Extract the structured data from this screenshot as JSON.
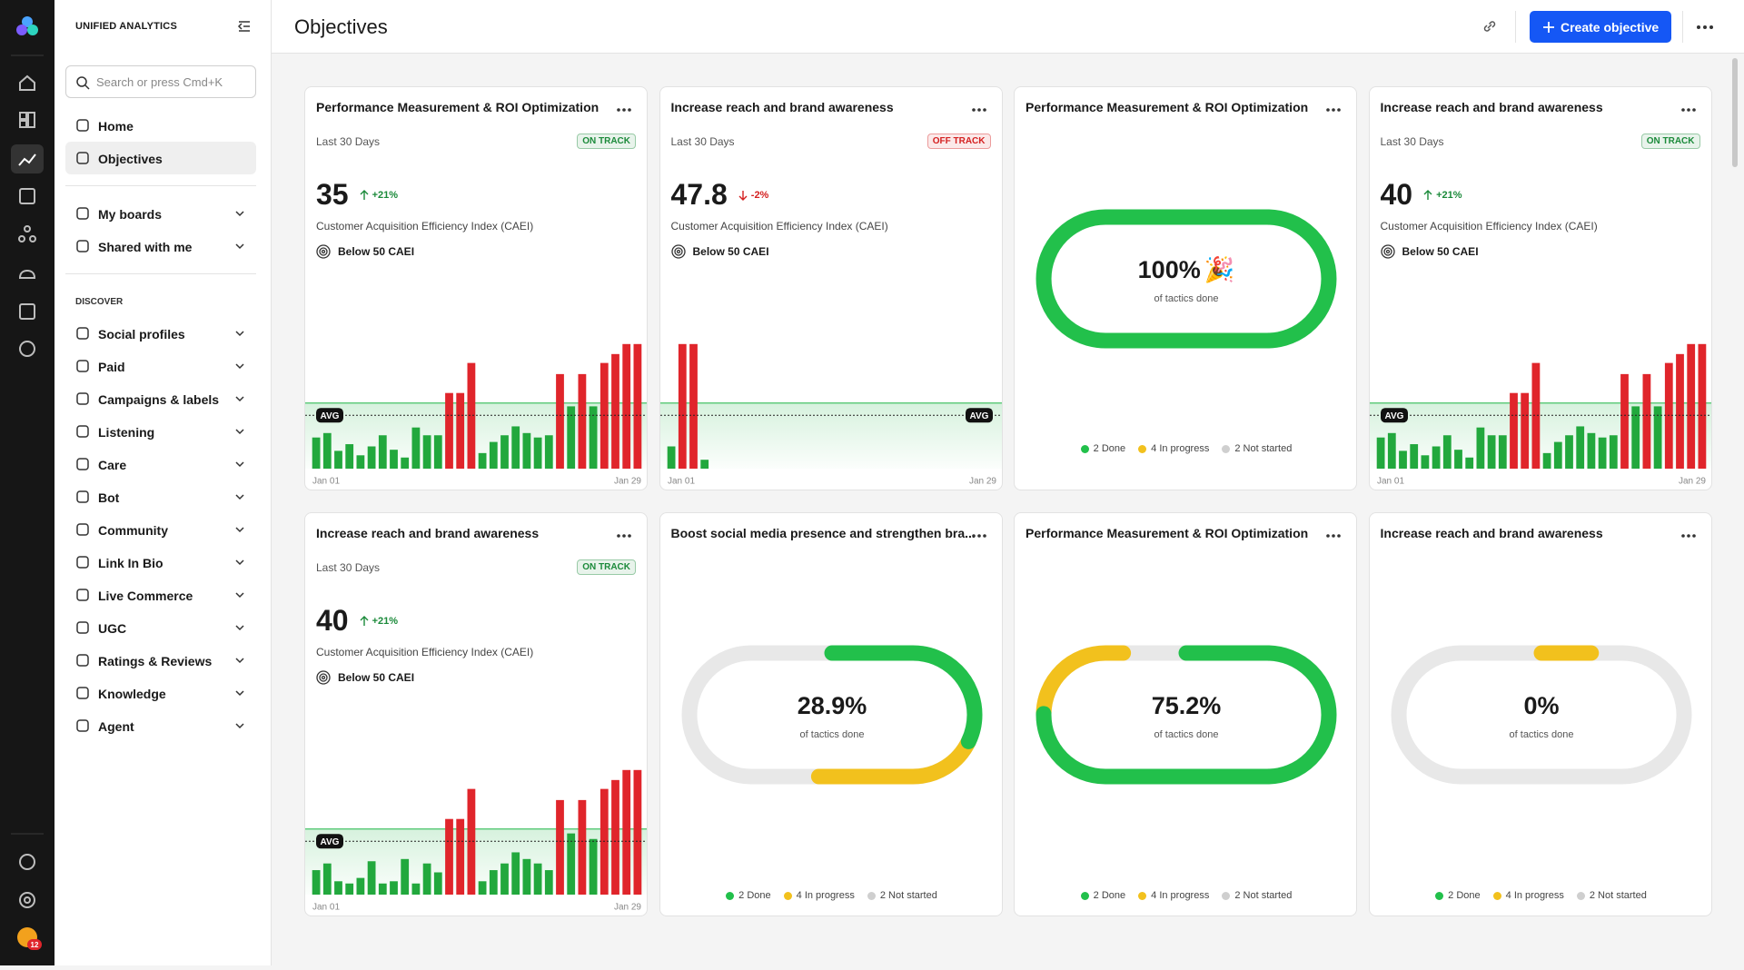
{
  "app": {
    "brand": "UNIFIED ANALYTICS",
    "search": "Search or press Cmd+K",
    "main": [
      "Home",
      "Objectives"
    ],
    "active_index": 1,
    "boards": [
      "My boards",
      "Shared with me"
    ],
    "discover_title": "DISCOVER",
    "discover": [
      "Social profiles",
      "Paid",
      "Campaigns & labels",
      "Listening",
      "Care",
      "Bot",
      "Community",
      "Link In Bio",
      "Live Commerce",
      "UGC",
      "Ratings & Reviews",
      "Knowledge",
      "Agent"
    ],
    "notifications": 12
  },
  "header": {
    "title": "Objectives",
    "button": "Create objective"
  },
  "palette": {
    "over_target": "#e0252b",
    "under_target": "#22a83d",
    "target_line": "#46c266"
  },
  "cards": [
    {
      "type": "bar",
      "title": "Performance Measurement & ROI Optimization",
      "period": "Last 30 Days",
      "status": "ON TRACK",
      "status_color": "#1b8a3a",
      "value": 35,
      "change": "+21%",
      "change_color": "#1b8a3a",
      "metric": "Customer Acquisition Efficiency Index (CAEI)",
      "target_text": "Below 50 CAEI",
      "avg_label": "AVG",
      "avg_label_side": "left",
      "x_labels": [
        "Jan 01",
        "Jan 29"
      ],
      "ylim": [
        0,
        120
      ],
      "avg": 48,
      "target": 59,
      "values": [
        28,
        32,
        16,
        22,
        12,
        20,
        30,
        17,
        10,
        37,
        30,
        30,
        68,
        68,
        95,
        14,
        24,
        30,
        38,
        32,
        28,
        30,
        85,
        56,
        85,
        56,
        95,
        103,
        112,
        112
      ]
    },
    {
      "type": "bar",
      "title": "Increase reach and brand awareness",
      "period": "Last 30 Days",
      "status": "OFF TRACK",
      "status_color": "#d42020",
      "value": 47.8,
      "change": "-2%",
      "change_color": "#d42020",
      "metric": "Customer Acquisition Efficiency Index (CAEI)",
      "target_text": "Below 50 CAEI",
      "avg_label": "AVG",
      "avg_label_side": "right",
      "x_labels": [
        "Jan 01",
        "Jan 29"
      ],
      "ylim": [
        0,
        120
      ],
      "avg": 48,
      "target": 59,
      "values": [
        20,
        112,
        112,
        8,
        null,
        null,
        null,
        null,
        null,
        null,
        null,
        null,
        null,
        null,
        null,
        null,
        null,
        null,
        null,
        null,
        null,
        null,
        null,
        null,
        null,
        null,
        null,
        null,
        null,
        null
      ]
    },
    {
      "type": "ring",
      "title": "Performance Measurement & ROI Optimization",
      "done": 100,
      "done_label": "100%",
      "emoji": "🎉",
      "in_progress": 0,
      "caption": "of tactics done",
      "legend": [
        {
          "label": "2 Done",
          "color": "#22c04b"
        },
        {
          "label": "4 In progress",
          "color": "#f2c11d"
        },
        {
          "label": "2 Not started",
          "color": "#cfcfcf"
        }
      ]
    },
    {
      "type": "bar",
      "title": "Increase reach and brand awareness",
      "period": "Last 30 Days",
      "status": "ON TRACK",
      "status_color": "#1b8a3a",
      "value": 40,
      "change": "+21%",
      "change_color": "#1b8a3a",
      "metric": "Customer Acquisition Efficiency Index (CAEI)",
      "target_text": "Below 50 CAEI",
      "avg_label": "AVG",
      "avg_label_side": "left",
      "x_labels": [
        "Jan 01",
        "Jan 29"
      ],
      "ylim": [
        0,
        120
      ],
      "avg": 48,
      "target": 59,
      "values": [
        28,
        32,
        16,
        22,
        12,
        20,
        30,
        17,
        10,
        37,
        30,
        30,
        68,
        68,
        95,
        14,
        24,
        30,
        38,
        32,
        28,
        30,
        85,
        56,
        85,
        56,
        95,
        103,
        112,
        112
      ]
    },
    {
      "type": "bar",
      "title": "Increase reach and brand awareness",
      "period": "Last 30 Days",
      "status": "ON TRACK",
      "status_color": "#1b8a3a",
      "value": 40,
      "change": "+21%",
      "change_color": "#1b8a3a",
      "metric": "Customer Acquisition Efficiency Index (CAEI)",
      "target_text": "Below 50 CAEI",
      "avg_label": "AVG",
      "avg_label_side": "left",
      "x_labels": [
        "Jan 01",
        "Jan 29"
      ],
      "ylim": [
        0,
        120
      ],
      "avg": 48,
      "target": 59,
      "values": [
        22,
        28,
        12,
        10,
        15,
        30,
        10,
        12,
        32,
        10,
        28,
        20,
        68,
        68,
        95,
        12,
        22,
        28,
        38,
        32,
        28,
        22,
        85,
        55,
        85,
        50,
        95,
        103,
        112,
        112
      ]
    },
    {
      "type": "ring",
      "title": "Boost social media presence and strengthen bra...",
      "done": 28.9,
      "done_label": "28.9%",
      "in_progress": 23,
      "caption": "of tactics done",
      "legend": [
        {
          "label": "2 Done",
          "color": "#22c04b"
        },
        {
          "label": "4 In progress",
          "color": "#f2c11d"
        },
        {
          "label": "2 Not started",
          "color": "#cfcfcf"
        }
      ]
    },
    {
      "type": "ring",
      "title": "Performance Measurement & ROI Optimization",
      "done": 75.2,
      "done_label": "75.2%",
      "in_progress": 16,
      "caption": "of tactics done",
      "legend": [
        {
          "label": "2 Done",
          "color": "#22c04b"
        },
        {
          "label": "4 In progress",
          "color": "#f2c11d"
        },
        {
          "label": "2 Not started",
          "color": "#cfcfcf"
        }
      ]
    },
    {
      "type": "ring",
      "title": "Increase reach and brand awareness",
      "done": 0,
      "done_label": "0%",
      "in_progress": 7,
      "caption": "of tactics done",
      "legend": [
        {
          "label": "2 Done",
          "color": "#22c04b"
        },
        {
          "label": "4 In progress",
          "color": "#f2c11d"
        },
        {
          "label": "2 Not started",
          "color": "#cfcfcf"
        }
      ]
    }
  ]
}
